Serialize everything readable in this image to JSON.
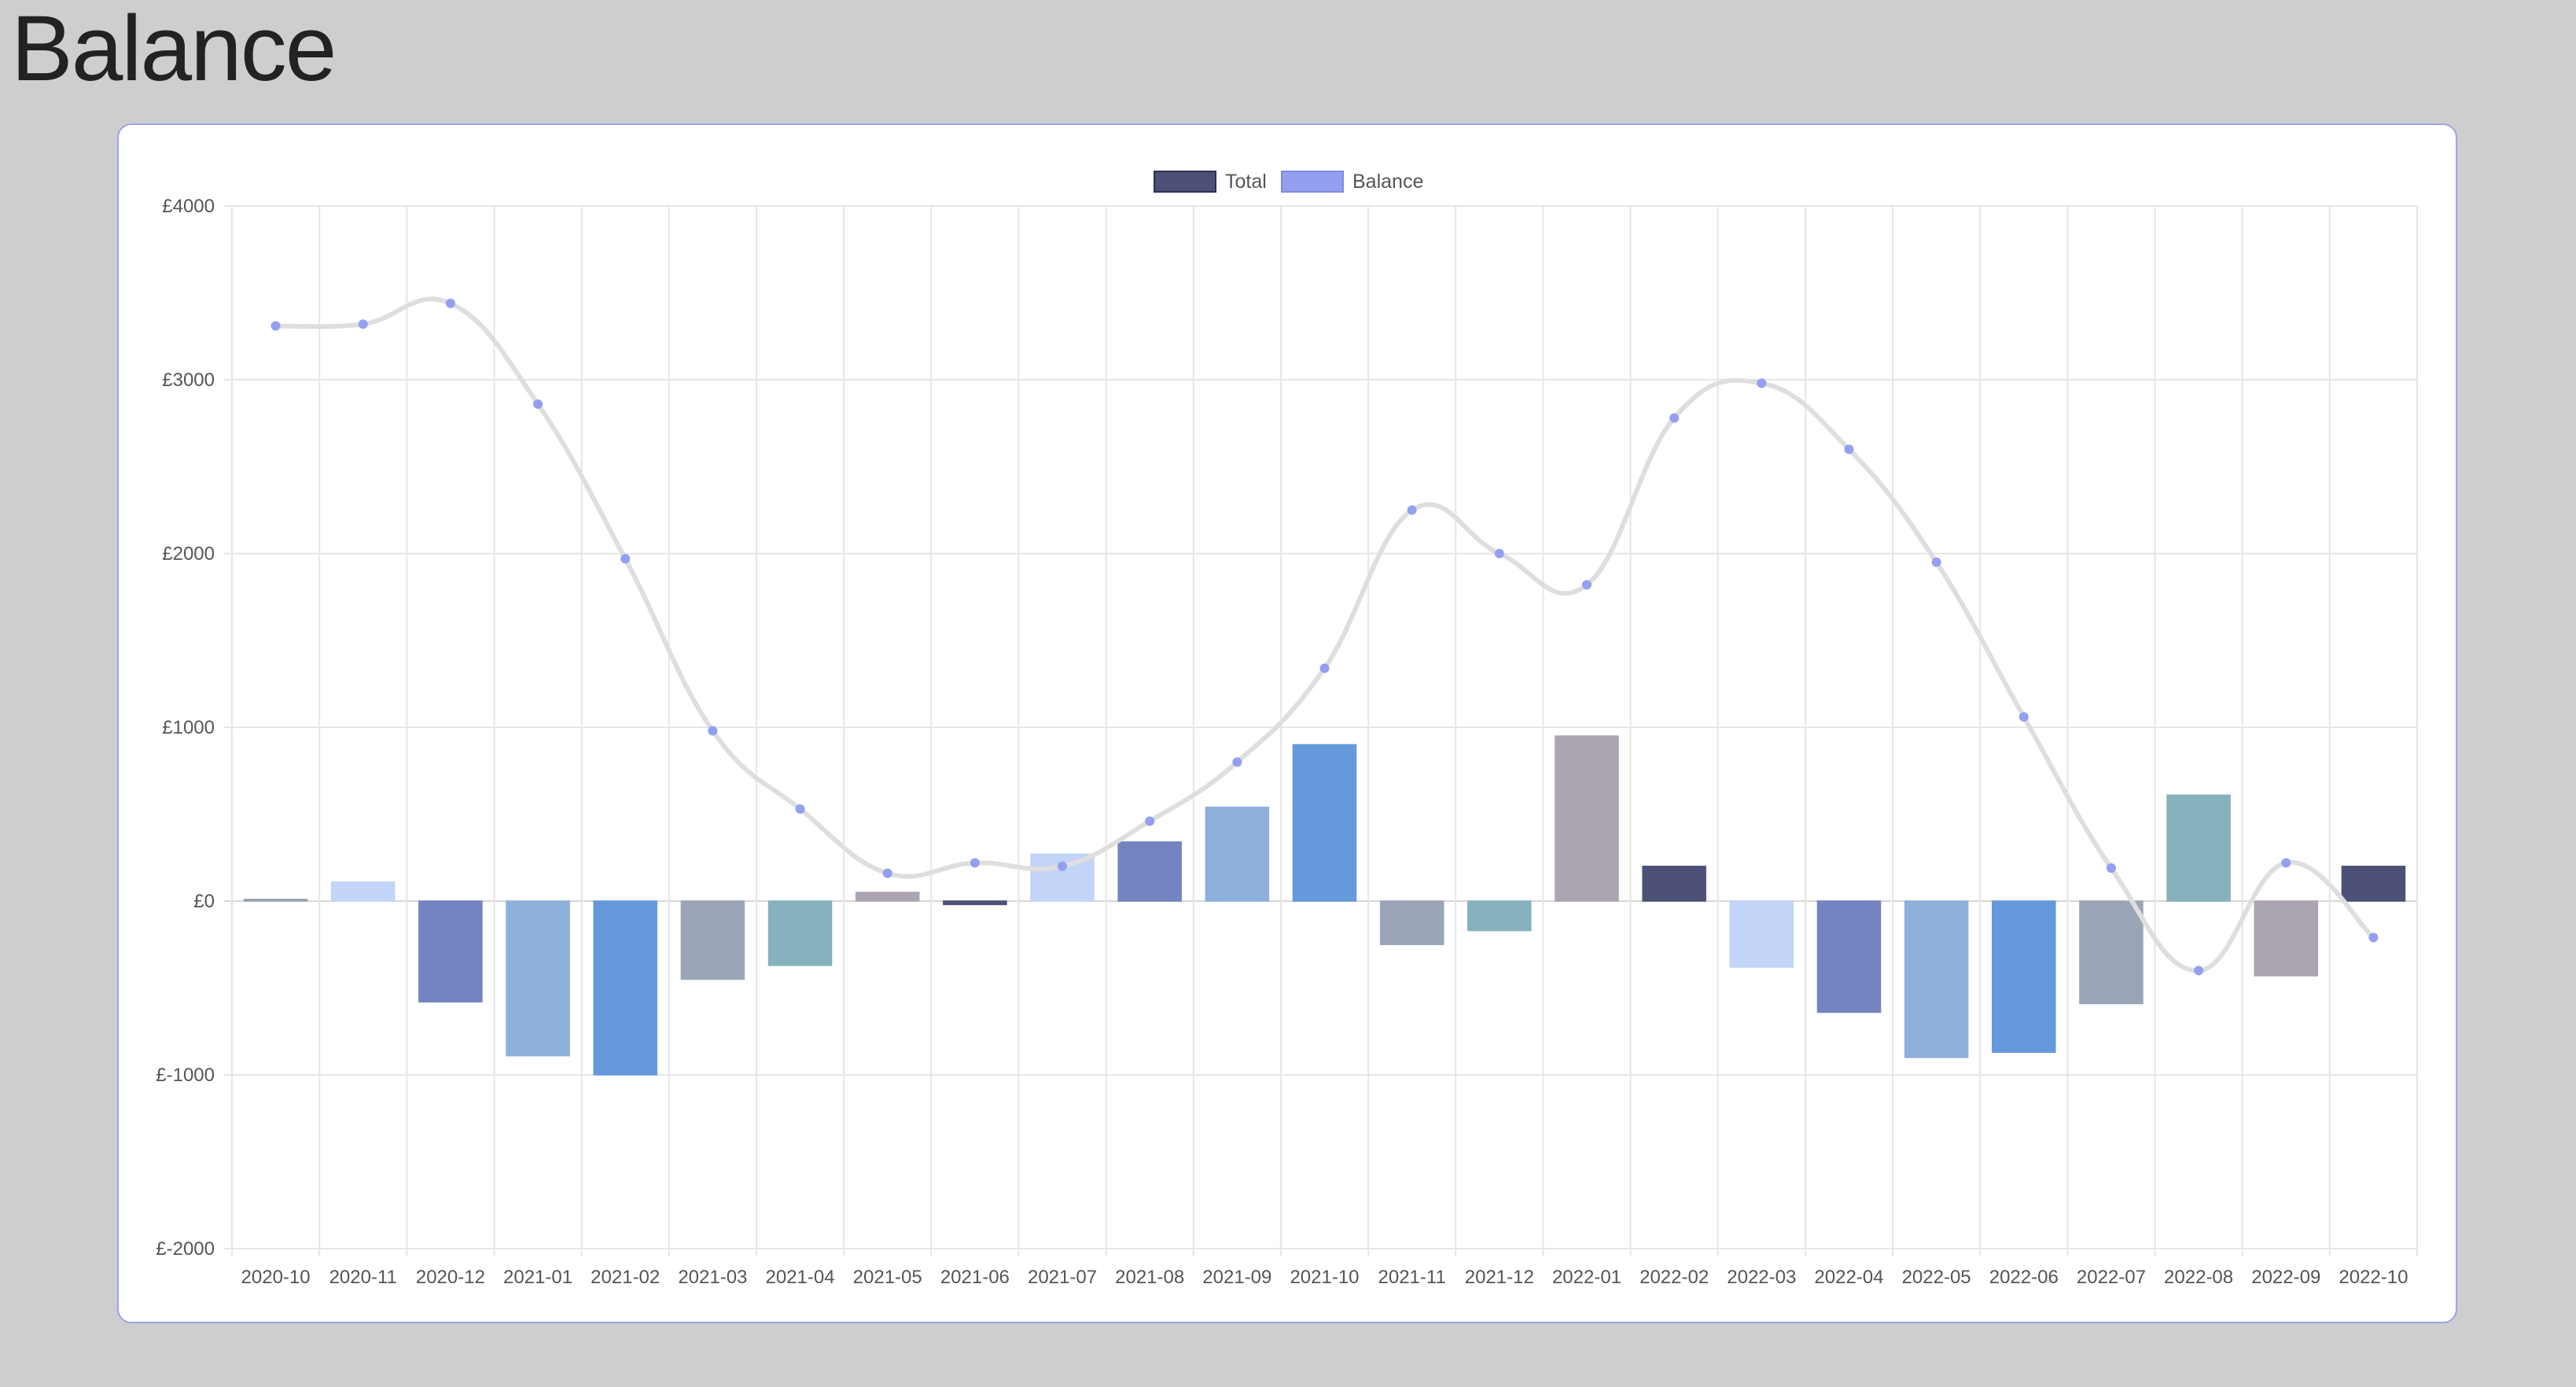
{
  "page": {
    "title": "Balance"
  },
  "chart_data": {
    "type": "bar",
    "title": "",
    "xlabel": "",
    "ylabel": "",
    "ylim": [
      -2000,
      4000
    ],
    "y_ticks": [
      "£4000",
      "£3000",
      "£2000",
      "£1000",
      "£0",
      "£-1000",
      "£-2000"
    ],
    "y_tick_values": [
      4000,
      3000,
      2000,
      1000,
      0,
      -1000,
      -2000
    ],
    "grid": true,
    "legend_position": "top-center",
    "categories": [
      "2020-10",
      "2020-11",
      "2020-12",
      "2021-01",
      "2021-02",
      "2021-03",
      "2021-04",
      "2021-05",
      "2021-06",
      "2021-07",
      "2021-08",
      "2021-09",
      "2021-10",
      "2021-11",
      "2021-12",
      "2022-01",
      "2022-02",
      "2022-03",
      "2022-04",
      "2022-05",
      "2022-06",
      "2022-07",
      "2022-08",
      "2022-09",
      "2022-10"
    ],
    "series": [
      {
        "name": "Total",
        "type": "bar",
        "legend_color": "#4d5077",
        "values": [
          10,
          110,
          -580,
          -890,
          -1000,
          -450,
          -370,
          50,
          -20,
          270,
          340,
          540,
          900,
          -250,
          -170,
          950,
          200,
          -380,
          -640,
          -900,
          -870,
          -590,
          610,
          -430,
          200
        ],
        "bar_colors": [
          "#9aa3b5",
          "#c2d4f8",
          "#7484c0",
          "#8cb0da",
          "#6699dc",
          "#9aa6b8",
          "#85b2bc",
          "#ada4b2",
          "#4d5077",
          "#c2d4f8",
          "#7484c0",
          "#8cb0da",
          "#6699dc",
          "#9aa6b8",
          "#85b2bc",
          "#ada4b2",
          "#4d5077",
          "#c2d4f8",
          "#7484c0",
          "#8cb0da",
          "#6699dc",
          "#9aa6b8",
          "#85b2bc",
          "#ada4b2",
          "#4d5077"
        ]
      },
      {
        "name": "Balance",
        "type": "line",
        "legend_color": "#939ff0",
        "line_color": "#dedede",
        "point_color": "#939ff0",
        "values": [
          3310,
          3320,
          3440,
          2860,
          1970,
          980,
          530,
          160,
          220,
          200,
          460,
          800,
          1340,
          2250,
          2000,
          1820,
          2780,
          2980,
          2600,
          1950,
          1060,
          190,
          -400,
          220,
          -210
        ]
      }
    ]
  }
}
